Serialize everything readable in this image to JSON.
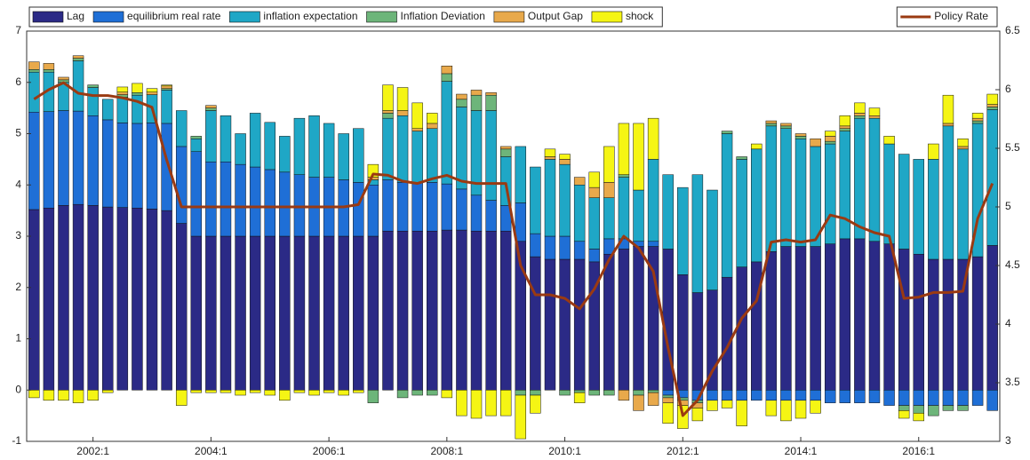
{
  "chart_data": {
    "type": "bar",
    "legend": "top",
    "categories": [
      null,
      null,
      null,
      null,
      "2002:1",
      null,
      null,
      null,
      null,
      null,
      null,
      null,
      "2004:1",
      null,
      null,
      null,
      null,
      null,
      null,
      null,
      "2006:1",
      null,
      null,
      null,
      null,
      null,
      null,
      null,
      "2008:1",
      null,
      null,
      null,
      null,
      null,
      null,
      null,
      "2010:1",
      null,
      null,
      null,
      null,
      null,
      null,
      null,
      "2012:1",
      null,
      null,
      null,
      null,
      null,
      null,
      null,
      "2014:1",
      null,
      null,
      null,
      null,
      null,
      null,
      null,
      "2016:1",
      null,
      null,
      null,
      null,
      null
    ],
    "ylim": [
      -1,
      7
    ],
    "yticks": [
      -1,
      0,
      1,
      2,
      3,
      4,
      5,
      6,
      7
    ],
    "y2lim": [
      3,
      6.5
    ],
    "y2ticks": [
      3,
      3.5,
      4,
      4.5,
      5,
      5.5,
      6,
      6.5
    ],
    "series": [
      {
        "name": "Lag",
        "color": "#2b2a86",
        "values": [
          3.52,
          3.55,
          3.6,
          3.62,
          3.6,
          3.57,
          3.56,
          3.55,
          3.53,
          3.5,
          3.25,
          3.0,
          3.0,
          3.0,
          3.0,
          3.0,
          3.0,
          3.0,
          3.0,
          3.0,
          3.0,
          3.0,
          3.0,
          3.0,
          3.1,
          3.1,
          3.1,
          3.1,
          3.12,
          3.12,
          3.1,
          3.1,
          3.1,
          2.9,
          2.6,
          2.55,
          2.55,
          2.55,
          2.5,
          2.65,
          2.75,
          2.8,
          2.8,
          2.75,
          2.25,
          1.9,
          1.95,
          2.2,
          2.4,
          2.5,
          2.7,
          2.8,
          2.8,
          2.8,
          2.85,
          2.95,
          2.95,
          2.9,
          2.85,
          2.75,
          2.65,
          2.55,
          2.55,
          2.55,
          2.6,
          2.82
        ]
      },
      {
        "name": "equilibrium real rate",
        "color": "#1f6fd6",
        "values": [
          1.9,
          1.88,
          1.85,
          1.82,
          1.75,
          1.7,
          1.65,
          1.65,
          1.68,
          1.7,
          1.5,
          1.65,
          1.45,
          1.45,
          1.4,
          1.35,
          1.3,
          1.25,
          1.2,
          1.15,
          1.15,
          1.1,
          1.05,
          1.0,
          1.0,
          0.95,
          0.95,
          0.95,
          0.9,
          0.8,
          0.7,
          0.6,
          0.5,
          0.75,
          0.45,
          0.45,
          0.45,
          0.35,
          0.25,
          0.3,
          0.2,
          0.1,
          0.1,
          -0.1,
          -0.15,
          -0.2,
          -0.2,
          -0.2,
          -0.2,
          -0.2,
          -0.2,
          -0.2,
          -0.2,
          -0.2,
          -0.25,
          -0.25,
          -0.25,
          -0.25,
          -0.3,
          -0.3,
          -0.3,
          -0.3,
          -0.3,
          -0.3,
          -0.3,
          -0.4
        ]
      },
      {
        "name": "inflation expectation",
        "color": "#1fa7c6",
        "values": [
          0.78,
          0.77,
          0.55,
          0.98,
          0.55,
          0.4,
          0.5,
          0.55,
          0.55,
          0.65,
          0.7,
          0.25,
          1.0,
          0.9,
          0.6,
          1.05,
          0.92,
          0.7,
          1.1,
          1.2,
          1.05,
          0.9,
          1.05,
          0.1,
          1.2,
          1.3,
          1.0,
          1.05,
          2.0,
          1.6,
          1.65,
          1.75,
          0.95,
          1.1,
          1.3,
          1.5,
          1.4,
          1.1,
          1.0,
          0.8,
          1.2,
          1.0,
          1.6,
          1.45,
          1.7,
          2.3,
          1.95,
          2.8,
          2.1,
          2.2,
          2.45,
          2.3,
          2.1,
          1.95,
          1.95,
          2.1,
          2.35,
          2.4,
          1.95,
          1.85,
          1.85,
          1.95,
          2.6,
          2.15,
          2.6,
          2.65
        ]
      },
      {
        "name": "Inflation Deviation",
        "color": "#6db57a",
        "values": [
          0.05,
          0.05,
          0.05,
          0.05,
          0.05,
          0,
          0.05,
          0.05,
          0,
          0.03,
          0,
          0.05,
          0.05,
          0,
          0,
          0,
          0,
          0,
          0,
          0,
          0,
          0,
          0,
          -0.25,
          0.1,
          -0.15,
          -0.1,
          -0.1,
          0.15,
          0.15,
          0.3,
          0.3,
          0.15,
          -0.1,
          -0.1,
          0,
          -0.1,
          -0.05,
          -0.1,
          -0.1,
          0.05,
          -0.1,
          -0.05,
          -0.05,
          -0.05,
          -0.05,
          0,
          0.05,
          0.05,
          0,
          0.05,
          0.05,
          0.05,
          0,
          0.05,
          0.05,
          0.05,
          0,
          0,
          -0.1,
          -0.15,
          -0.2,
          -0.1,
          -0.1,
          0.05,
          0.05
        ]
      },
      {
        "name": "Output Gap",
        "color": "#e8a94b",
        "values": [
          0.15,
          0.12,
          0.05,
          0.05,
          0,
          0,
          0.05,
          0,
          0.05,
          0.05,
          0,
          0,
          0.05,
          0,
          0,
          0,
          0,
          0,
          0,
          0,
          0,
          0,
          0,
          0.05,
          0.05,
          0.1,
          0.05,
          0.1,
          0.15,
          0.1,
          0.1,
          0.05,
          0.05,
          0,
          0,
          0.05,
          0.1,
          0.15,
          0.2,
          0.3,
          -0.2,
          -0.3,
          -0.25,
          -0.1,
          -0.1,
          -0.1,
          0,
          0,
          0,
          0,
          0.05,
          0.05,
          0.05,
          0.15,
          0.1,
          0.05,
          0.05,
          0.05,
          0,
          0,
          0,
          0,
          0.05,
          0.05,
          0.05,
          0.05
        ]
      },
      {
        "name": "shock",
        "color": "#f5f514",
        "values": [
          -0.15,
          -0.2,
          -0.2,
          -0.25,
          -0.2,
          -0.05,
          0.1,
          0.18,
          0.07,
          0.02,
          -0.3,
          -0.05,
          -0.05,
          -0.05,
          -0.1,
          -0.05,
          -0.1,
          -0.2,
          -0.05,
          -0.1,
          -0.05,
          -0.1,
          -0.05,
          0.25,
          0.5,
          0.45,
          0.5,
          0.2,
          -0.15,
          -0.5,
          -0.55,
          -0.5,
          -0.5,
          -0.85,
          -0.35,
          0.15,
          0.1,
          -0.2,
          0.3,
          0.7,
          1.0,
          1.3,
          0.8,
          -0.4,
          -0.45,
          -0.25,
          -0.2,
          -0.15,
          -0.5,
          0.1,
          -0.3,
          -0.4,
          -0.35,
          -0.25,
          0.1,
          0.2,
          0.2,
          0.15,
          0.15,
          -0.15,
          -0.15,
          0.3,
          0.55,
          0.15,
          0.1,
          0.2
        ]
      },
      {
        "name": "Policy Rate",
        "type": "line",
        "axis": "y2",
        "color": "#9a3a12",
        "values": [
          5.92,
          6.0,
          6.06,
          5.97,
          5.95,
          5.95,
          5.93,
          5.9,
          5.85,
          5.4,
          5.0,
          5.0,
          5.0,
          5.0,
          5.0,
          5.0,
          5.0,
          5.0,
          5.0,
          5.0,
          5.0,
          5.0,
          5.02,
          5.28,
          5.27,
          5.22,
          5.2,
          5.24,
          5.27,
          5.22,
          5.2,
          5.2,
          5.2,
          4.5,
          4.25,
          4.25,
          4.22,
          4.13,
          4.3,
          4.55,
          4.75,
          4.65,
          4.45,
          3.8,
          3.22,
          3.35,
          3.6,
          3.8,
          4.05,
          4.2,
          4.7,
          4.72,
          4.7,
          4.72,
          4.93,
          4.9,
          4.83,
          4.78,
          4.75,
          4.22,
          4.23,
          4.27,
          4.27,
          4.28,
          4.9,
          5.2
        ]
      }
    ]
  }
}
